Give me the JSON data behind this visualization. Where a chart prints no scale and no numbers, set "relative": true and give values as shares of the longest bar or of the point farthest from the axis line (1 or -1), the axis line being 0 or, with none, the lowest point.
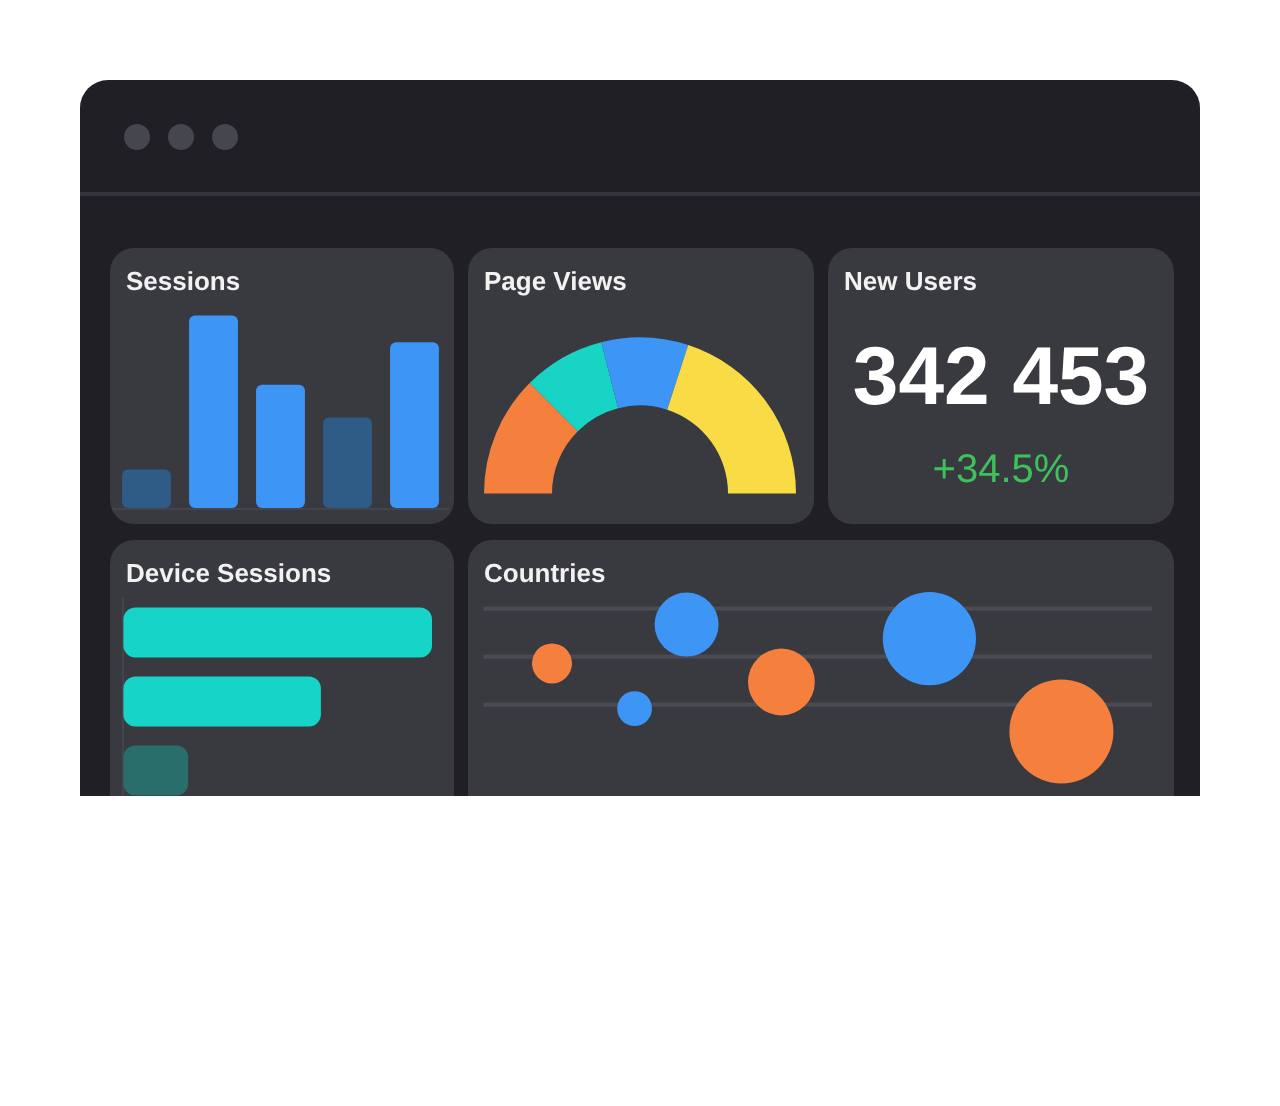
{
  "chart_data": [
    {
      "type": "bar",
      "title": "Sessions",
      "relative": true,
      "categories": [
        null,
        null,
        null,
        null,
        null
      ],
      "values": [
        0.2,
        1,
        0.64,
        0.47,
        0.86
      ],
      "colors": [
        "#2f5b87",
        "#3d95f5",
        "#3d95f5",
        "#2f5b87",
        "#3d95f5"
      ]
    },
    {
      "type": "donut",
      "title": "Page Views",
      "categories": [
        null,
        null,
        null,
        null
      ],
      "values": [
        25,
        17,
        18,
        40
      ],
      "colors": [
        "#f5803e",
        "#17d4c5",
        "#3d95f5",
        "#f9dc45"
      ]
    },
    {
      "type": "other",
      "title": "New Users",
      "annotations": [
        "342 453",
        "+34.5%"
      ]
    },
    {
      "type": "bar",
      "title": "Device Sessions",
      "relative": true,
      "orientation": "horizontal",
      "categories": [
        null,
        null,
        null
      ],
      "values": [
        1,
        0.64,
        0.21
      ],
      "colors": [
        "#17d4c8",
        "#17d4c8",
        "#2a6e6c"
      ]
    },
    {
      "type": "other",
      "title": "Countries"
    }
  ]
}
